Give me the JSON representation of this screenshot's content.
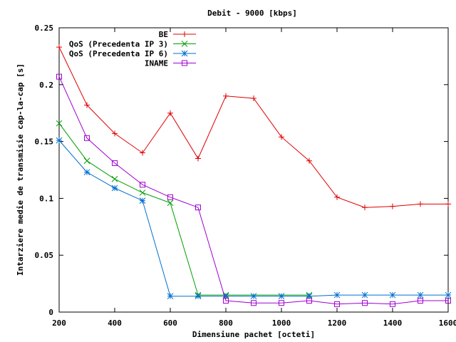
{
  "chart_data": {
    "type": "line",
    "title": "Debit - 9000 [kbps]",
    "xlabel": "Dimensiune pachet [octeti]",
    "ylabel": "Intarziere medie de transmisie cap-la-cap [s]",
    "xlim": [
      200,
      1600
    ],
    "ylim": [
      0,
      0.25
    ],
    "xticks": [
      200,
      400,
      600,
      800,
      1000,
      1200,
      1400,
      1600
    ],
    "yticks": [
      0,
      0.05,
      0.1,
      0.15,
      0.2,
      0.25
    ],
    "xtick_labels": [
      "200",
      "400",
      "600",
      "800",
      "1000",
      "1200",
      "1400",
      "1600"
    ],
    "ytick_labels": [
      "0",
      "0.05",
      "0.1",
      "0.15",
      "0.2",
      "0.25"
    ],
    "grid": false,
    "legend_position": "top-left",
    "series": [
      {
        "name": "BE",
        "color": "#e00000",
        "marker": "plus",
        "x": [
          200,
          300,
          400,
          500,
          600,
          700,
          800,
          900,
          1000,
          1100,
          1200,
          1300,
          1400,
          1500,
          1600
        ],
        "y": [
          0.233,
          0.182,
          0.157,
          0.14,
          0.175,
          0.135,
          0.19,
          0.188,
          0.154,
          0.133,
          0.101,
          0.092,
          0.093,
          0.095,
          0.095
        ]
      },
      {
        "name": "QoS (Precedenta IP 3)",
        "color": "#00a000",
        "marker": "x",
        "x": [
          200,
          300,
          400,
          500,
          600,
          700,
          800,
          1100
        ],
        "y": [
          0.166,
          0.133,
          0.117,
          0.105,
          0.096,
          0.015,
          0.015,
          0.015
        ]
      },
      {
        "name": "QoS (Precedenta IP 6)",
        "color": "#0070d0",
        "marker": "star",
        "x": [
          200,
          300,
          400,
          500,
          600,
          700,
          800,
          900,
          1000,
          1100,
          1200,
          1300,
          1400,
          1500,
          1600
        ],
        "y": [
          0.151,
          0.123,
          0.109,
          0.098,
          0.014,
          0.014,
          0.014,
          0.014,
          0.014,
          0.014,
          0.015,
          0.015,
          0.015,
          0.015,
          0.015
        ]
      },
      {
        "name": "INAME",
        "color": "#a000d0",
        "marker": "square",
        "x": [
          200,
          300,
          400,
          500,
          600,
          700,
          800,
          900,
          1000,
          1100,
          1200,
          1300,
          1400,
          1500,
          1600
        ],
        "y": [
          0.207,
          0.153,
          0.131,
          0.112,
          0.101,
          0.092,
          0.01,
          0.008,
          0.008,
          0.01,
          0.007,
          0.008,
          0.007,
          0.01,
          0.01
        ]
      }
    ]
  }
}
